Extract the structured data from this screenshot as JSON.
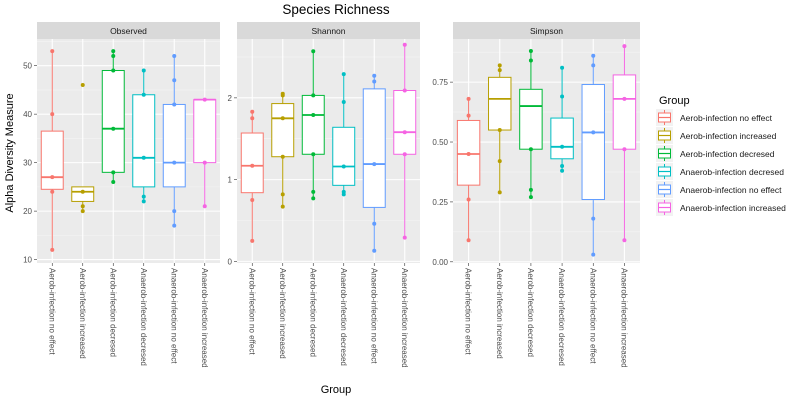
{
  "chart_data": {
    "type": "boxplot",
    "title": "Species Richness",
    "xlabel": "Group",
    "ylabel": "Alpha Diversity Measure",
    "legend": {
      "title": "Group",
      "placement": "right"
    },
    "categories": [
      "Aerob-infection no effect",
      "Aerob-infection increased",
      "Aerob-infection decresed",
      "Anaerob-infection decresed",
      "Anaerob-infection no effect",
      "Anaerob-infection increased"
    ],
    "colors": [
      "#F8766D",
      "#B79F00",
      "#00BA38",
      "#00BFC4",
      "#619CFF",
      "#F564E3"
    ],
    "grid": true,
    "panels": [
      {
        "title": "Observed",
        "ylim": [
          10,
          55
        ],
        "yticks": [
          10,
          20,
          30,
          40,
          50
        ],
        "boxes": [
          {
            "q1": 24.5,
            "median": 27,
            "q3": 36.5,
            "low": 12,
            "high": 53,
            "points": [
              12,
              24,
              27,
              40,
              53
            ]
          },
          {
            "q1": 22,
            "median": 24,
            "q3": 25,
            "low": 20,
            "high": 25,
            "points": [
              20,
              21,
              24,
              46
            ]
          },
          {
            "q1": 28,
            "median": 37,
            "q3": 49,
            "low": 26,
            "high": 53,
            "points": [
              26,
              28,
              37,
              49,
              52,
              53
            ]
          },
          {
            "q1": 25,
            "median": 31,
            "q3": 44,
            "low": 22,
            "high": 49,
            "points": [
              22,
              23,
              31,
              44,
              49
            ]
          },
          {
            "q1": 25,
            "median": 30,
            "q3": 42,
            "low": 17,
            "high": 52,
            "points": [
              17,
              20,
              30,
              42,
              47,
              52
            ]
          },
          {
            "q1": 30,
            "median": 43,
            "q3": 43,
            "low": 21,
            "high": 43,
            "points": [
              21,
              30,
              43
            ]
          }
        ]
      },
      {
        "title": "Shannon",
        "ylim": [
          0,
          2.65
        ],
        "yticks": [
          0,
          1,
          2
        ],
        "boxes": [
          {
            "q1": 0.84,
            "median": 1.17,
            "q3": 1.57,
            "low": 0.25,
            "high": 1.83,
            "points": [
              0.25,
              0.75,
              1.17,
              1.75,
              1.83
            ]
          },
          {
            "q1": 1.28,
            "median": 1.75,
            "q3": 1.93,
            "low": 0.67,
            "high": 2.05,
            "points": [
              0.67,
              0.82,
              1.28,
              1.75,
              2.03,
              2.05
            ]
          },
          {
            "q1": 1.31,
            "median": 1.79,
            "q3": 2.03,
            "low": 0.77,
            "high": 2.57,
            "points": [
              0.77,
              0.85,
              1.31,
              1.79,
              2.03,
              2.57
            ]
          },
          {
            "q1": 0.93,
            "median": 1.16,
            "q3": 1.64,
            "low": 0.82,
            "high": 2.29,
            "points": [
              0.82,
              0.85,
              1.16,
              1.95,
              2.29
            ]
          },
          {
            "q1": 0.66,
            "median": 1.19,
            "q3": 2.11,
            "low": 0.13,
            "high": 2.27,
            "points": [
              0.13,
              0.46,
              1.19,
              2.2,
              2.27
            ]
          },
          {
            "q1": 1.31,
            "median": 1.58,
            "q3": 2.09,
            "low": 0.29,
            "high": 2.65,
            "points": [
              0.29,
              1.31,
              1.58,
              2.09,
              2.65
            ]
          }
        ]
      },
      {
        "title": "Simpson",
        "ylim": [
          0,
          0.9
        ],
        "yticks": [
          0.0,
          0.25,
          0.5,
          0.75
        ],
        "boxes": [
          {
            "q1": 0.32,
            "median": 0.45,
            "q3": 0.59,
            "low": 0.09,
            "high": 0.68,
            "points": [
              0.09,
              0.26,
              0.45,
              0.61,
              0.68
            ]
          },
          {
            "q1": 0.55,
            "median": 0.68,
            "q3": 0.77,
            "low": 0.29,
            "high": 0.82,
            "points": [
              0.29,
              0.42,
              0.55,
              0.8,
              0.82
            ]
          },
          {
            "q1": 0.47,
            "median": 0.65,
            "q3": 0.72,
            "low": 0.27,
            "high": 0.88,
            "points": [
              0.27,
              0.3,
              0.47,
              0.84,
              0.88
            ]
          },
          {
            "q1": 0.43,
            "median": 0.48,
            "q3": 0.6,
            "low": 0.38,
            "high": 0.81,
            "points": [
              0.38,
              0.4,
              0.48,
              0.69,
              0.81
            ]
          },
          {
            "q1": 0.26,
            "median": 0.54,
            "q3": 0.74,
            "low": 0.03,
            "high": 0.86,
            "points": [
              0.03,
              0.18,
              0.54,
              0.82,
              0.86
            ]
          },
          {
            "q1": 0.47,
            "median": 0.68,
            "q3": 0.78,
            "low": 0.09,
            "high": 0.9,
            "points": [
              0.09,
              0.47,
              0.68,
              0.9
            ]
          }
        ]
      }
    ]
  }
}
